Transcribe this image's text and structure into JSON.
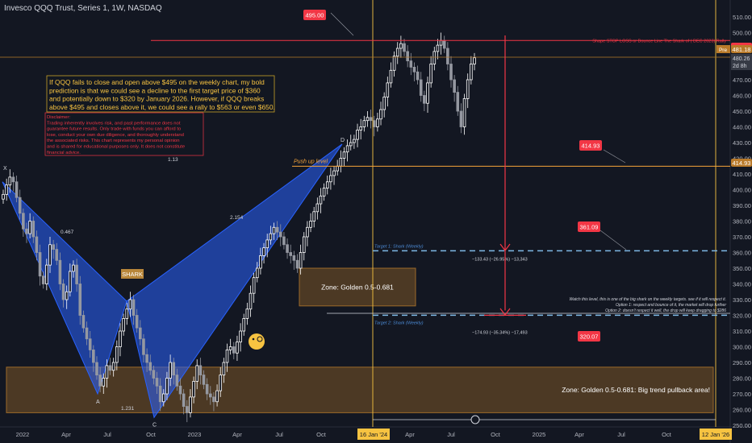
{
  "header": {
    "title": "Invesco QQQ Trust, Series 1, 1W, NASDAQ"
  },
  "chart_data": {
    "type": "candlestick",
    "yticks": [
      250,
      260,
      270,
      280,
      290,
      300,
      310,
      320,
      330,
      340,
      350,
      360,
      370,
      380,
      390,
      400,
      410,
      420,
      430,
      440,
      450,
      460,
      470,
      480,
      490,
      500,
      510
    ],
    "xticks": [
      "2022",
      "Apr",
      "Jul",
      "Oct",
      "2023",
      "Apr",
      "Jul",
      "Oct",
      "16 Jan '24",
      "Apr",
      "Jul",
      "Oct",
      "2025",
      "Apr",
      "Jul",
      "Oct",
      "12 Jan '26"
    ],
    "price_labels": {
      "p495": "495.00",
      "p49000": "490.00",
      "p481": "481.18",
      "sub1": "480.26",
      "sub2": "2d 8h",
      "p41493": "414.93",
      "pre": "Pre"
    },
    "levels": {
      "stop": {
        "value": 495,
        "label": "495.00",
        "text": "Shape STOP LOSS or Bounce Line The Shark of ( DEC 2023) Rally"
      },
      "pushup": {
        "value": 414.93,
        "label": "414.93",
        "text": "Push up level"
      },
      "target1": {
        "value": 361.09,
        "label": "361.09",
        "text": "Target 1: Shark (Weekly)",
        "measure": "−133.43 (−26.95%) −13,343"
      },
      "target2": {
        "value": 320.07,
        "label": "320.07",
        "text": "Target 2:  Shark (Weekly)",
        "measure": "−174.93 (−35.34%) −17,493"
      }
    },
    "pattern": {
      "points": [
        {
          "label": "X",
          "price": 405
        },
        {
          "label": "A",
          "price": 270
        },
        {
          "label": "B",
          "price": 329
        },
        {
          "label": "C",
          "price": 255
        },
        {
          "label": "D",
          "price": 429
        }
      ],
      "ratios": [
        "0.467",
        "2.154",
        "1.231",
        "1.13"
      ],
      "name": "SHARK"
    },
    "zones": [
      {
        "label": "Zone: Golden 0.5-0.681",
        "top": 350,
        "bottom": 326
      },
      {
        "label": "Zone: Golden 0.5-0.681: Big trend pullback area!",
        "top": 287,
        "bottom": 258
      }
    ],
    "notes": {
      "prediction": "If QQQ fails to close and open above $495 on the weekly chart, my bold prediction is that we could see a decline to the first target price of $360 and potentially down to $320 by January 2026. However, if QQQ breaks above $495 and closes above it, we could see a rally to $563 or even $650.",
      "disclaimer": "Disclaimer: Trading inherently involves risk, and past performance does not guarantee future results. Only trade with funds you can afford to lose, conduct your own due diligence, and thoroughly understand the associated risks. This chart represents my personal opinion and is shared for educational purposes only. It does not constitute financial advice.",
      "watch": "Watch this level, this is one of the big shark on the weekly targets. see if it will respect it.",
      "option1": "Option 1: respect and bounce of it, the market will drop further",
      "option2": "Option 2: doesn't respect it well, the drop will keep dragging to $286"
    },
    "series": [
      {
        "values": [
          397,
          403,
          408,
          405,
          395,
          385,
          375,
          372,
          380,
          370,
          360,
          345,
          340,
          352,
          365,
          362,
          355,
          340,
          330,
          335,
          348,
          352,
          340,
          320,
          312,
          305,
          298,
          290,
          282,
          275,
          280,
          288,
          285,
          290,
          300,
          310,
          318,
          324,
          330,
          320,
          312,
          305,
          295,
          290,
          285,
          280,
          275,
          265,
          270,
          280,
          290,
          282,
          275,
          270,
          262,
          258,
          268,
          278,
          288,
          282,
          276,
          270,
          268,
          265,
          272,
          282,
          290,
          298,
          300,
          296,
          303,
          310,
          318,
          324,
          334,
          344,
          350,
          358,
          363,
          368,
          372,
          376,
          373,
          370,
          365,
          360,
          358,
          355,
          350,
          360,
          370,
          376,
          380,
          386,
          391,
          396,
          401,
          405,
          409,
          412,
          415,
          420,
          424,
          428,
          430,
          432,
          438,
          440,
          444,
          446,
          444,
          440,
          445,
          451,
          459,
          468,
          476,
          485,
          490,
          493,
          488,
          482,
          478,
          475,
          470,
          460,
          455,
          468,
          480,
          488,
          492,
          495,
          490,
          480,
          470,
          462,
          450,
          440,
          458,
          470,
          480,
          484
        ]
      }
    ]
  }
}
